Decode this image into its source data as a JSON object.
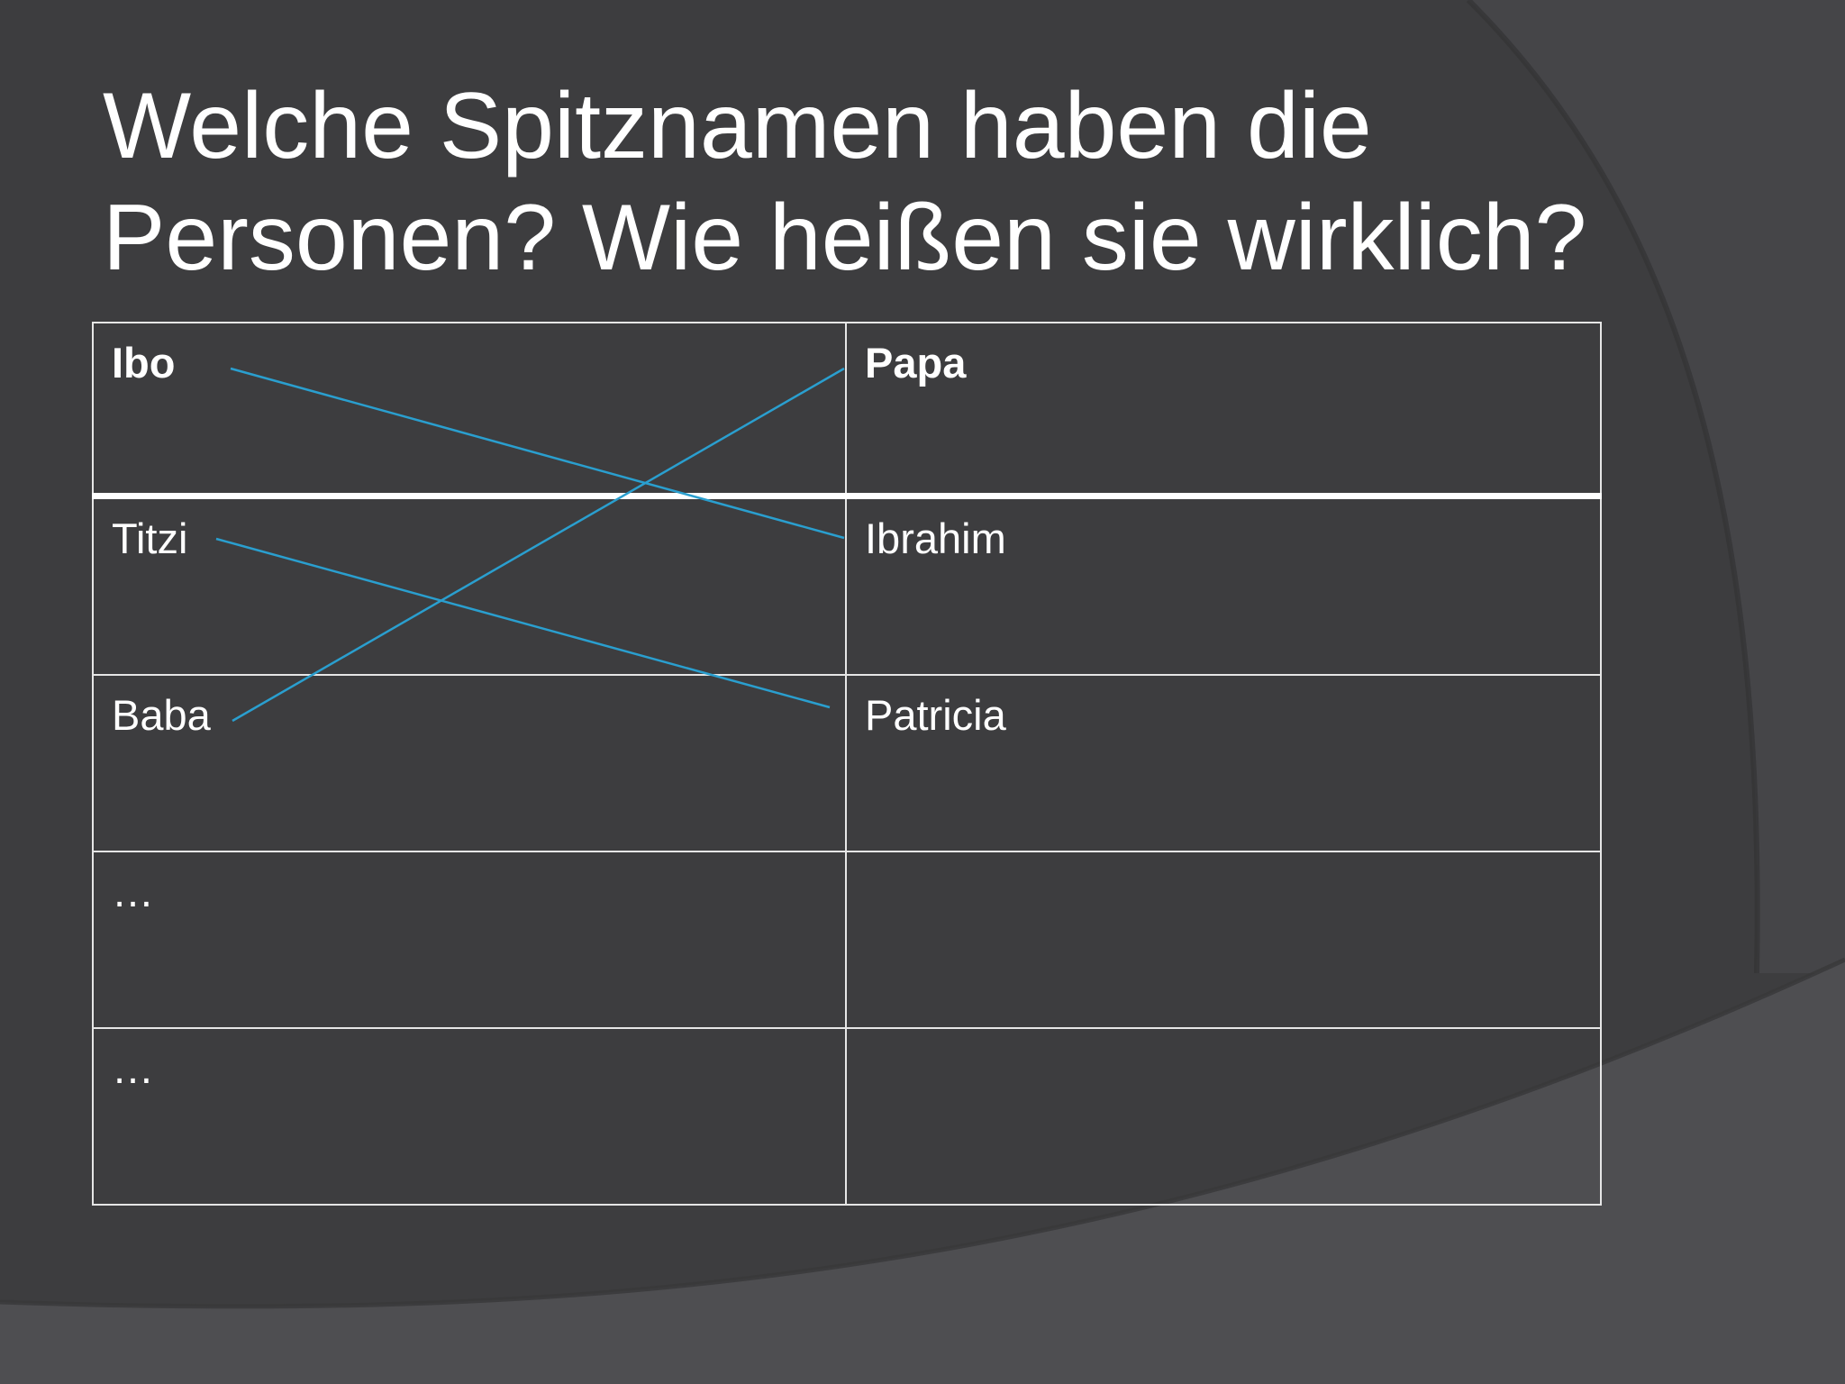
{
  "slide": {
    "title": "Welche Spitznamen haben die Personen? Wie heißen sie wirklich?",
    "colors": {
      "background": "#3d3d3f",
      "background_light": "#4e4e51",
      "text": "#ffffff",
      "table_border": "#e6e6e6",
      "connector_line": "#2a9fcf"
    }
  },
  "table": {
    "rows": [
      {
        "nickname": "Ibo",
        "real_name": "Papa"
      },
      {
        "nickname": "Titzi",
        "real_name": "Ibrahim"
      },
      {
        "nickname": "Baba",
        "real_name": "Patricia"
      },
      {
        "nickname": "…",
        "real_name": ""
      },
      {
        "nickname": "…",
        "real_name": ""
      }
    ]
  },
  "connectors": [
    {
      "from": "Ibo",
      "to": "Ibrahim"
    },
    {
      "from": "Titzi",
      "to": "Patricia"
    },
    {
      "from": "Baba",
      "to": "Papa"
    }
  ]
}
